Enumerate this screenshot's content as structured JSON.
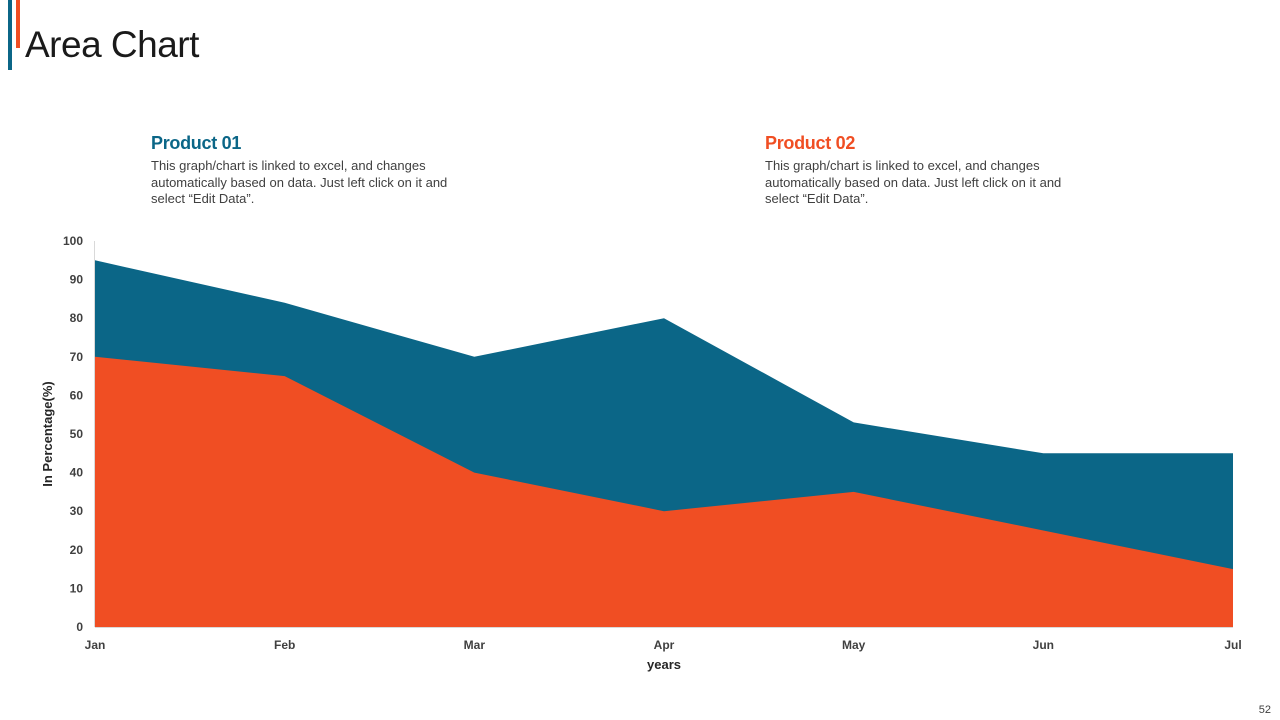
{
  "slide": {
    "title": "Area Chart",
    "page_number": "52"
  },
  "colors": {
    "product01": "#0B6687",
    "product02": "#F04E23"
  },
  "legend": [
    {
      "title": "Product 01",
      "description": "This graph/chart is linked to excel,  and changes automatically based on data. Just left click  on it and select “Edit Data”."
    },
    {
      "title": "Product 02",
      "description": "This graph/chart is linked to excel,  and changes automatically based on data. Just left click  on it and select “Edit Data”."
    }
  ],
  "chart_data": {
    "type": "area",
    "title": "",
    "xlabel": "years",
    "ylabel": "In Percentage(%)",
    "categories": [
      "Jan",
      "Feb",
      "Mar",
      "Apr",
      "May",
      "Jun",
      "Jul"
    ],
    "ylim": [
      0,
      100
    ],
    "yticks": [
      0,
      10,
      20,
      30,
      40,
      50,
      60,
      70,
      80,
      90,
      100
    ],
    "grid": false,
    "series": [
      {
        "name": "Product 01",
        "values": [
          95,
          84,
          70,
          80,
          53,
          45,
          45
        ]
      },
      {
        "name": "Product 02",
        "values": [
          70,
          65,
          40,
          30,
          35,
          25,
          15
        ]
      }
    ]
  }
}
